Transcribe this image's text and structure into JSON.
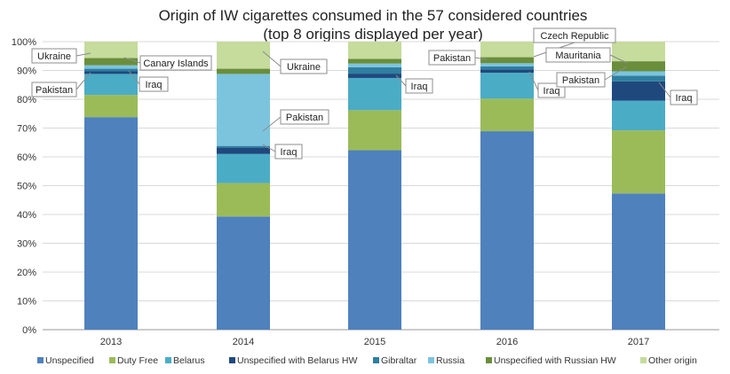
{
  "chart_data": {
    "type": "bar",
    "stacked": true,
    "title": "Origin of IW cigarettes consumed in the 57 considered countries",
    "subtitle": "(top 8 origins displayed per year)",
    "categories": [
      "2013",
      "2014",
      "2015",
      "2016",
      "2017"
    ],
    "ylim": [
      0,
      100
    ],
    "yticks": [
      "0%",
      "10%",
      "20%",
      "30%",
      "40%",
      "50%",
      "60%",
      "70%",
      "80%",
      "90%",
      "100%"
    ],
    "grid": true,
    "legend_position": "bottom",
    "series": [
      {
        "name": "Unspecified",
        "color": "#4f81bd",
        "values": [
          73.8,
          39.3,
          62.3,
          68.9,
          47.3
        ]
      },
      {
        "name": "Duty Free",
        "color": "#9bbb59",
        "values": [
          7.7,
          11.6,
          13.9,
          11.3,
          21.9
        ]
      },
      {
        "name": "Belarus",
        "color": "#4bacc6",
        "values": [
          7.3,
          10.1,
          11.2,
          9.0,
          10.3
        ]
      },
      {
        "name": "Unspecified with Belarus HW",
        "color": "#1f497d",
        "values": [
          0.9,
          2.2,
          1.5,
          1.2,
          6.7
        ]
      },
      {
        "name": "Gibraltar",
        "color": "#2f7f9f",
        "values": [
          0.9,
          0.6,
          2.2,
          1.0,
          2.0
        ]
      },
      {
        "name": "Russia",
        "color": "#7cc4de",
        "values": [
          1.2,
          25.0,
          1.3,
          1.1,
          1.5
        ]
      },
      {
        "name": "Unspecified with Russian HW",
        "color": "#6a8e3c",
        "values": [
          2.5,
          1.8,
          1.6,
          2.1,
          3.5
        ]
      },
      {
        "name": "Other origin",
        "color": "#c5dc9c",
        "values": [
          5.7,
          9.4,
          6.0,
          5.4,
          6.8
        ]
      }
    ],
    "annotations": [
      {
        "text": "Ukraine",
        "year": "2013"
      },
      {
        "text": "Canary Islands",
        "year": "2013"
      },
      {
        "text": "Iraq",
        "year": "2013"
      },
      {
        "text": "Pakistan",
        "year": "2013"
      },
      {
        "text": "Ukraine",
        "year": "2014"
      },
      {
        "text": "Pakistan",
        "year": "2014"
      },
      {
        "text": "Iraq",
        "year": "2014"
      },
      {
        "text": "Iraq",
        "year": "2015"
      },
      {
        "text": "Czech Republic",
        "year": "2016"
      },
      {
        "text": "Pakistan",
        "year": "2016"
      },
      {
        "text": "Iraq",
        "year": "2016"
      },
      {
        "text": "Mauritania",
        "year": "2017"
      },
      {
        "text": "Pakistan",
        "year": "2017"
      },
      {
        "text": "Iraq",
        "year": "2017"
      }
    ]
  }
}
